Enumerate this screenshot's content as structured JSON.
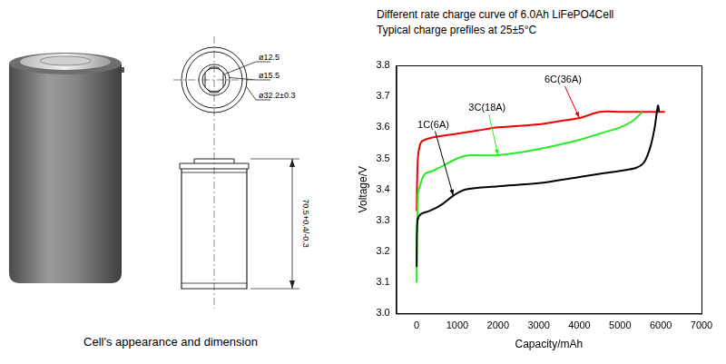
{
  "figure": {
    "caption": "Cell's appearance and dimension",
    "dimensions": {
      "top_view": [
        "ø12.5",
        "ø15.5",
        "ø32.2±0.3"
      ],
      "height": "70.5+0.4/-0.3"
    }
  },
  "chart_data": {
    "type": "line",
    "title": "Different rate charge curve of 6.0Ah LiFePO4Cell",
    "subtitle": "Typical charge prefiles at 25±5°C",
    "x_label": "Capacity/mAh",
    "y_label": "Voltage/V",
    "series": [
      {
        "name": "1C(6A)",
        "color": "#000000",
        "x": [
          0,
          20,
          100,
          300,
          600,
          900,
          1200,
          2000,
          3000,
          4000,
          4500,
          5000,
          5400,
          5600,
          5750,
          5850,
          5930,
          5960
        ],
        "values": [
          3.15,
          3.3,
          3.32,
          3.33,
          3.35,
          3.38,
          3.4,
          3.41,
          3.42,
          3.44,
          3.45,
          3.46,
          3.47,
          3.49,
          3.54,
          3.6,
          3.67,
          3.65
        ]
      },
      {
        "name": "3C(18A)",
        "color": "#22ee22",
        "x": [
          0,
          30,
          100,
          200,
          400,
          700,
          1000,
          1300,
          2000,
          3000,
          4000,
          4500,
          5000,
          5300,
          5550
        ],
        "values": [
          3.1,
          3.38,
          3.42,
          3.45,
          3.46,
          3.48,
          3.5,
          3.51,
          3.51,
          3.53,
          3.56,
          3.58,
          3.6,
          3.62,
          3.65
        ]
      },
      {
        "name": "6C(36A)",
        "color": "#ee0000",
        "x": [
          0,
          30,
          100,
          200,
          500,
          1000,
          1500,
          2000,
          3000,
          3500,
          4000,
          4500,
          5000,
          6100
        ],
        "values": [
          3.33,
          3.5,
          3.55,
          3.56,
          3.57,
          3.58,
          3.59,
          3.6,
          3.61,
          3.62,
          3.63,
          3.65,
          3.65,
          3.65
        ]
      }
    ],
    "xlim": [
      -500,
      7000
    ],
    "xticks": [
      0,
      1000,
      2000,
      3000,
      4000,
      5000,
      6000,
      7000
    ],
    "ylim": [
      3,
      3.8
    ],
    "yticks": [
      {
        "value": 3,
        "label": "3.0"
      },
      {
        "value": 3.1,
        "label": "3.1"
      },
      {
        "value": 3.2,
        "label": "3.2"
      },
      {
        "value": 3.3,
        "label": "3.3"
      },
      {
        "value": 3.4,
        "label": "3.4"
      },
      {
        "value": 3.5,
        "label": "3.5"
      },
      {
        "value": 3.6,
        "label": "3.6"
      },
      {
        "value": 3.7,
        "label": "3.7"
      },
      {
        "value": 3.8,
        "label": "3.8"
      }
    ],
    "grid": false
  }
}
